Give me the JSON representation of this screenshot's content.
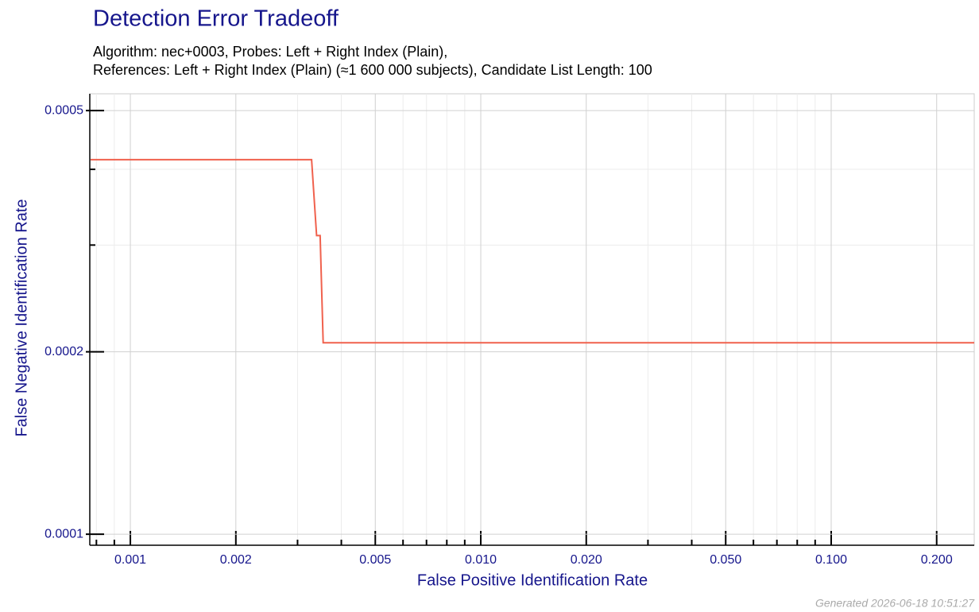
{
  "chart_data": {
    "type": "line",
    "title": "Detection Error Tradeoff",
    "subtitle": [
      "Algorithm: nec+0003, Probes: Left + Right Index (Plain),",
      "References: Left + Right Index (Plain) (≈1 600 000 subjects), Candidate List Length: 100"
    ],
    "xlabel": "False Positive Identification Rate",
    "ylabel": "False Negative Identification Rate",
    "x": [
      0.00077,
      0.00329,
      0.0034,
      0.00348,
      0.00355,
      0.256
    ],
    "series": [
      {
        "name": "nec+0003",
        "color": "#f0614d",
        "values": [
          0.000415,
          0.000415,
          0.000311,
          0.000311,
          0.000207,
          0.000207
        ]
      }
    ],
    "xscale": "log",
    "yscale": "log",
    "xlim": [
      0.000766,
      0.256
    ],
    "ylim": [
      9.59e-05,
      0.000533
    ],
    "xticks": [
      0.001,
      0.002,
      0.005,
      {
        "value": 0.01,
        "label": "0.010"
      },
      {
        "value": 0.02,
        "label": "0.020"
      },
      {
        "value": 0.05,
        "label": "0.050"
      },
      {
        "value": 0.1,
        "label": "0.100"
      },
      {
        "value": 0.2,
        "label": "0.200"
      }
    ],
    "xminor_ticks": [
      0.0008,
      0.0009,
      0.003,
      0.004,
      0.006,
      0.007,
      0.008,
      0.009,
      0.03,
      0.04,
      0.06,
      0.07,
      0.08,
      0.09
    ],
    "yticks": [
      0.0001,
      0.0002,
      0.0005
    ],
    "yminor_ticks": [
      0.0003,
      0.0004
    ],
    "grid": true,
    "footer": "Generated 2026-06-18 10:51:27"
  }
}
